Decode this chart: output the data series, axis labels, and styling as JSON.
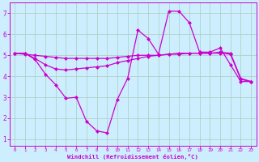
{
  "xlabel": "Windchill (Refroidissement éolien,°C)",
  "bg_color": "#cceeff",
  "grid_color": "#aaccbb",
  "line_color": "#cc00cc",
  "line1_x": [
    0,
    1,
    2,
    3,
    4,
    5,
    6,
    7,
    8,
    9,
    10,
    11,
    12,
    13,
    14,
    15,
    16,
    17,
    18,
    19,
    20,
    21,
    22,
    23
  ],
  "line1_y": [
    5.1,
    5.1,
    4.85,
    4.55,
    4.35,
    4.3,
    4.35,
    4.4,
    4.45,
    4.5,
    4.65,
    4.75,
    4.85,
    4.95,
    5.0,
    5.05,
    5.1,
    5.1,
    5.1,
    5.1,
    5.15,
    5.1,
    3.9,
    3.75
  ],
  "line2_x": [
    0,
    1,
    2,
    3,
    4,
    5,
    6,
    7,
    8,
    9,
    10,
    11,
    12,
    13,
    14,
    15,
    16,
    17,
    18,
    19,
    20,
    21,
    22,
    23
  ],
  "line2_y": [
    5.1,
    5.1,
    4.8,
    4.1,
    3.6,
    2.95,
    3.0,
    1.85,
    1.4,
    1.3,
    2.9,
    3.9,
    6.2,
    5.8,
    5.05,
    7.1,
    7.1,
    6.55,
    5.15,
    5.15,
    5.35,
    4.55,
    3.75,
    3.75
  ],
  "line3_x": [
    0,
    1,
    2,
    3,
    4,
    5,
    6,
    7,
    8,
    9,
    10,
    11,
    12,
    13,
    14,
    15,
    16,
    17,
    18,
    19,
    20,
    21,
    22,
    23
  ],
  "line3_y": [
    5.1,
    5.05,
    5.0,
    4.95,
    4.9,
    4.85,
    4.85,
    4.85,
    4.85,
    4.85,
    4.9,
    4.95,
    5.0,
    5.0,
    5.0,
    5.05,
    5.05,
    5.1,
    5.1,
    5.1,
    5.1,
    5.05,
    3.85,
    3.75
  ],
  "ylim": [
    0.7,
    7.5
  ],
  "xlim": [
    -0.5,
    23.5
  ],
  "yticks": [
    1,
    2,
    3,
    4,
    5,
    6,
    7
  ],
  "xticks": [
    0,
    1,
    2,
    3,
    4,
    5,
    6,
    7,
    8,
    9,
    10,
    11,
    12,
    13,
    14,
    15,
    16,
    17,
    18,
    19,
    20,
    21,
    22,
    23
  ]
}
